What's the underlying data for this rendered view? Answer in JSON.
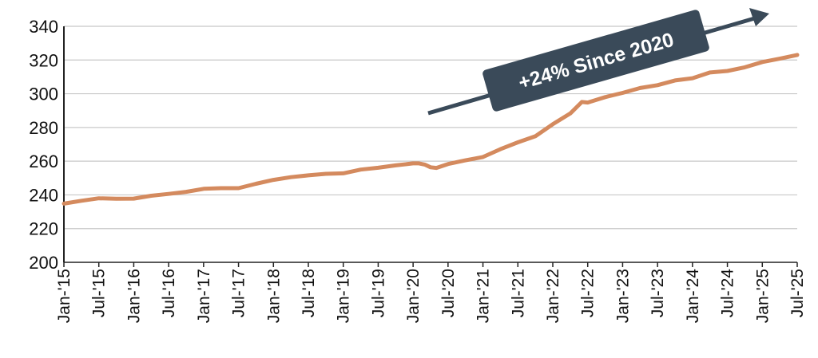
{
  "chart_data": {
    "type": "line",
    "title": "",
    "xlabel": "",
    "ylabel": "",
    "ylim": [
      200,
      340
    ],
    "yticks": [
      200,
      220,
      240,
      260,
      280,
      300,
      320,
      340
    ],
    "grid": "horizontal",
    "legend": "none",
    "x_tick_labels": [
      "Jan-'15",
      "Jul-'15",
      "Jan-'16",
      "Jul-'16",
      "Jan-'17",
      "Jul-'17",
      "Jan-'18",
      "Jul-'18",
      "Jan-'19",
      "Jul-'19",
      "Jan-'20",
      "Jul-'20",
      "Jan-'21",
      "Jul-'21",
      "Jan-'22",
      "Jul-'22",
      "Jan-'23",
      "Jul-'23",
      "Jan-'24",
      "Jul-'24",
      "Jan-'25",
      "Jul-'25"
    ],
    "series": [
      {
        "color": "#d48a5e",
        "x": [
          "2015-01",
          "2015-04",
          "2015-07",
          "2015-10",
          "2016-01",
          "2016-04",
          "2016-07",
          "2016-10",
          "2017-01",
          "2017-04",
          "2017-07",
          "2017-10",
          "2018-01",
          "2018-04",
          "2018-07",
          "2018-10",
          "2019-01",
          "2019-04",
          "2019-07",
          "2019-10",
          "2020-01",
          "2020-02",
          "2020-03",
          "2020-04",
          "2020-05",
          "2020-07",
          "2020-10",
          "2021-01",
          "2021-04",
          "2021-07",
          "2021-10",
          "2022-01",
          "2022-04",
          "2022-06",
          "2022-07",
          "2022-10",
          "2023-01",
          "2023-04",
          "2023-07",
          "2023-10",
          "2024-01",
          "2024-04",
          "2024-07",
          "2024-10",
          "2025-01",
          "2025-04",
          "2025-07"
        ],
        "values": [
          234.8,
          236.5,
          238.0,
          237.7,
          237.8,
          239.5,
          240.6,
          241.8,
          243.6,
          244.0,
          244.0,
          246.6,
          248.9,
          250.5,
          251.6,
          252.5,
          252.8,
          255.0,
          256.1,
          257.5,
          258.7,
          258.7,
          258.0,
          256.4,
          256.0,
          258.3,
          260.5,
          262.5,
          267.1,
          271.2,
          274.8,
          281.9,
          288.3,
          295.1,
          294.8,
          298.0,
          300.5,
          303.4,
          305.1,
          307.9,
          309.2,
          312.6,
          313.5,
          315.7,
          318.8,
          320.8,
          323.0
        ]
      }
    ],
    "annotations": [
      {
        "text": "+24% Since 2020",
        "type": "arrow-callout",
        "color": "#3a4a59"
      }
    ]
  }
}
